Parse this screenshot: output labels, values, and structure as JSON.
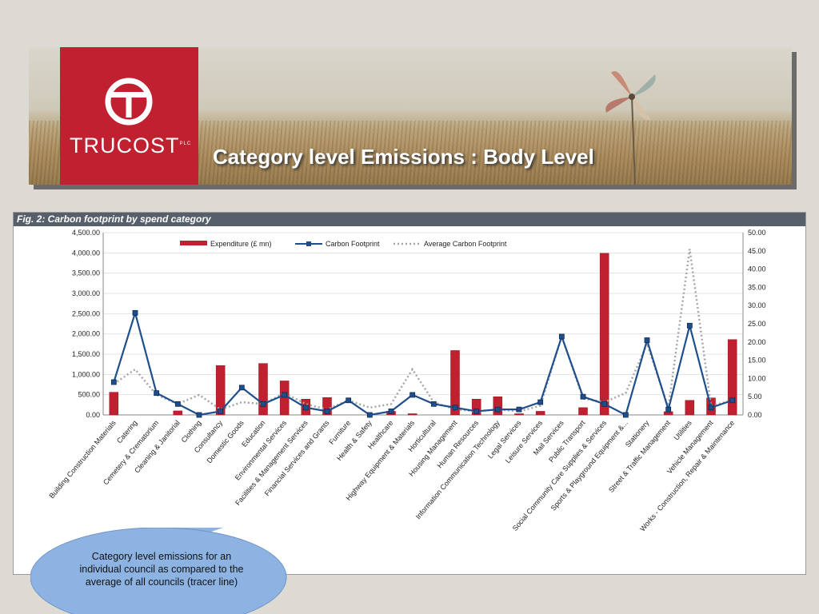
{
  "slide": {
    "title": "Category level Emissions : Body Level",
    "logo_text": "TRUCOST",
    "logo_sup": "PLC"
  },
  "figure": {
    "title": "Fig. 2: Carbon footprint by spend category"
  },
  "callout": {
    "text": "Category level emissions for an individual council as compared to the average of all councils (tracer line)"
  },
  "colors": {
    "bar": "#c0202f",
    "line": "#1f4e8c",
    "avg": "#a6a6a6",
    "logo": "#c0202f"
  },
  "chart_data": {
    "type": "bar",
    "categories": [
      "Building Construction Materials",
      "Catering",
      "Cemetery & Crematorium",
      "Cleaning & Janitorial",
      "Clothing",
      "Consultancy",
      "Domestic Goods",
      "Education",
      "Environmental Services",
      "Facilities & Management Services",
      "Financial Services and Grants",
      "Furniture",
      "Health & Safety",
      "Healthcare",
      "Highway Equipment & Materials",
      "Horticultural",
      "Housing Management",
      "Human Resources",
      "Information Communication Technology",
      "Legal Services",
      "Leisure Services",
      "Mail Services",
      "Public Transport",
      "Social Community Care Supplies & Services",
      "Sports & Playground Equipment &...",
      "Stationery",
      "Street & Traffic Management",
      "Utilities",
      "Vehicle Management",
      "Works - Construction, Repair & Maintenance"
    ],
    "series": [
      {
        "name": "Expenditure (£ mn)",
        "type": "bar",
        "axis": "left",
        "values": [
          560,
          0,
          0,
          100,
          0,
          1220,
          0,
          1270,
          840,
          390,
          430,
          0,
          0,
          90,
          30,
          0,
          1590,
          390,
          450,
          30,
          90,
          0,
          180,
          3990,
          0,
          0,
          80,
          360,
          420,
          1860
        ]
      },
      {
        "name": "Carbon Footprint",
        "type": "line",
        "axis": "right",
        "values": [
          9,
          28,
          6,
          3,
          0,
          1,
          7.5,
          3,
          5.5,
          2,
          1,
          4,
          0,
          1,
          5.5,
          3,
          2,
          1,
          1.5,
          1.5,
          3.5,
          21.5,
          5,
          3,
          0,
          20.5,
          1.5,
          24.5,
          2,
          4
        ]
      },
      {
        "name": "Average Carbon Footprint",
        "type": "line",
        "axis": "right",
        "values": [
          8.5,
          12.5,
          5.5,
          3,
          5.5,
          1.5,
          3.5,
          3,
          6,
          3,
          1.5,
          4,
          2,
          3,
          12.5,
          3.5,
          1.5,
          1,
          1.5,
          1,
          2.5,
          21.5,
          4.5,
          3.5,
          6,
          19.5,
          2,
          45.5,
          2.5,
          4
        ]
      }
    ],
    "ylim": [
      0,
      4500
    ],
    "ylim_right": [
      0,
      50
    ],
    "yticks": [
      "0.00",
      "500.00",
      "1,000.00",
      "1,500.00",
      "2,000.00",
      "2,500.00",
      "3,000.00",
      "3,500.00",
      "4,000.00",
      "4,500.00"
    ],
    "yticks_right": [
      "0.00",
      "5.00",
      "10.00",
      "15.00",
      "20.00",
      "25.00",
      "30.00",
      "35.00",
      "40.00",
      "45.00",
      "50.00"
    ],
    "grid": true,
    "legend": "top-center"
  }
}
